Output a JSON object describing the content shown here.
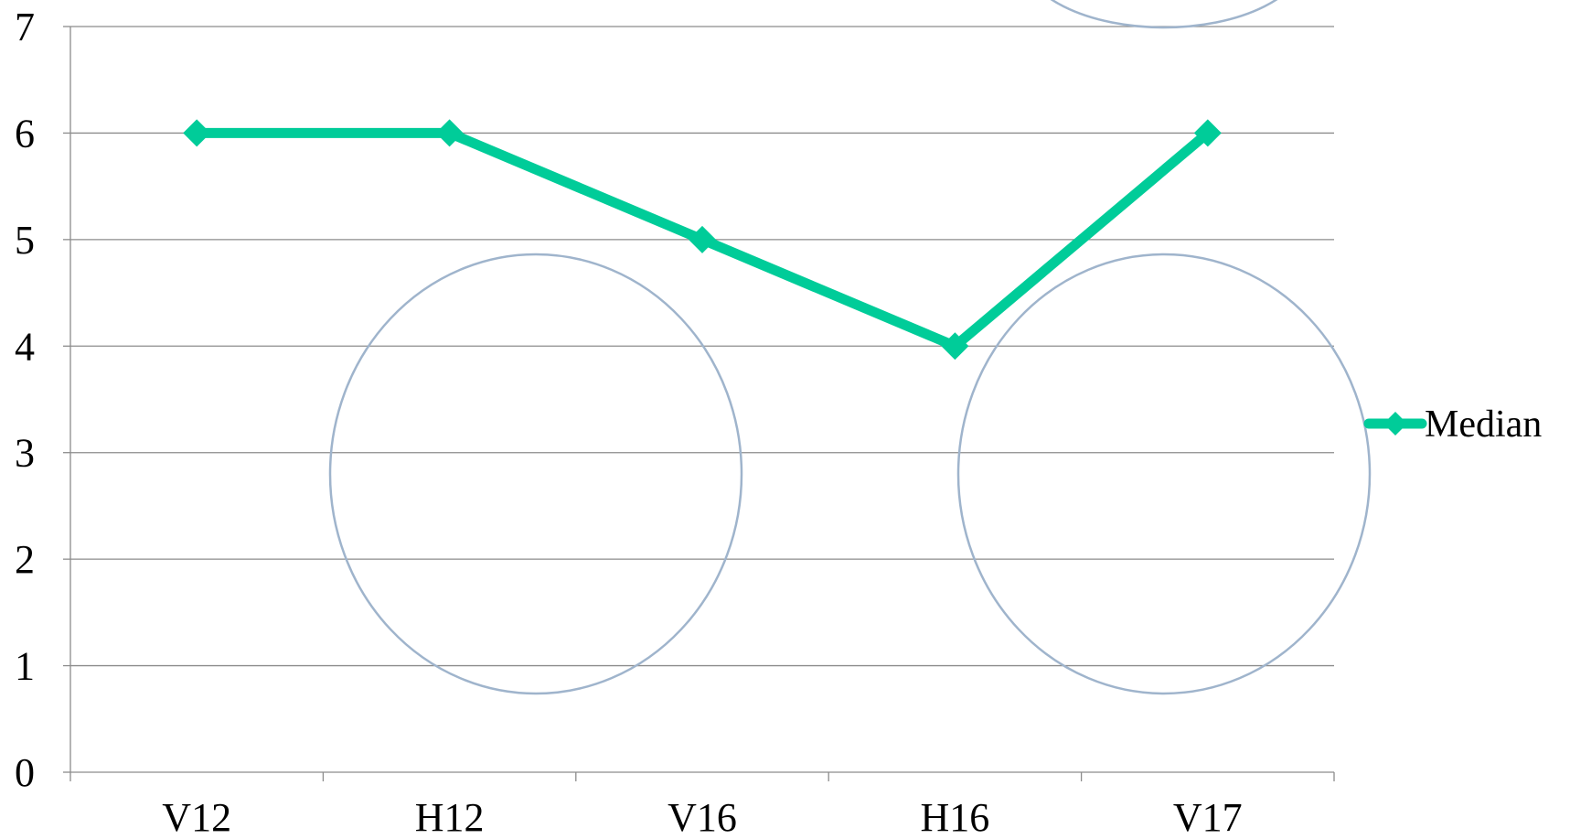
{
  "chart_data": {
    "type": "line",
    "categories": [
      "V12",
      "H12",
      "V16",
      "H16",
      "V17"
    ],
    "series": [
      {
        "name": "Median",
        "values": [
          6,
          6,
          5,
          4,
          6
        ],
        "color": "#00cc99",
        "marker": "diamond"
      }
    ],
    "y_ticks": [
      "0",
      "1",
      "2",
      "3",
      "4",
      "5",
      "6",
      "7"
    ],
    "ylim": [
      0,
      7
    ],
    "grid": true,
    "legend": "right",
    "title": "",
    "xlabel": "",
    "ylabel": ""
  }
}
